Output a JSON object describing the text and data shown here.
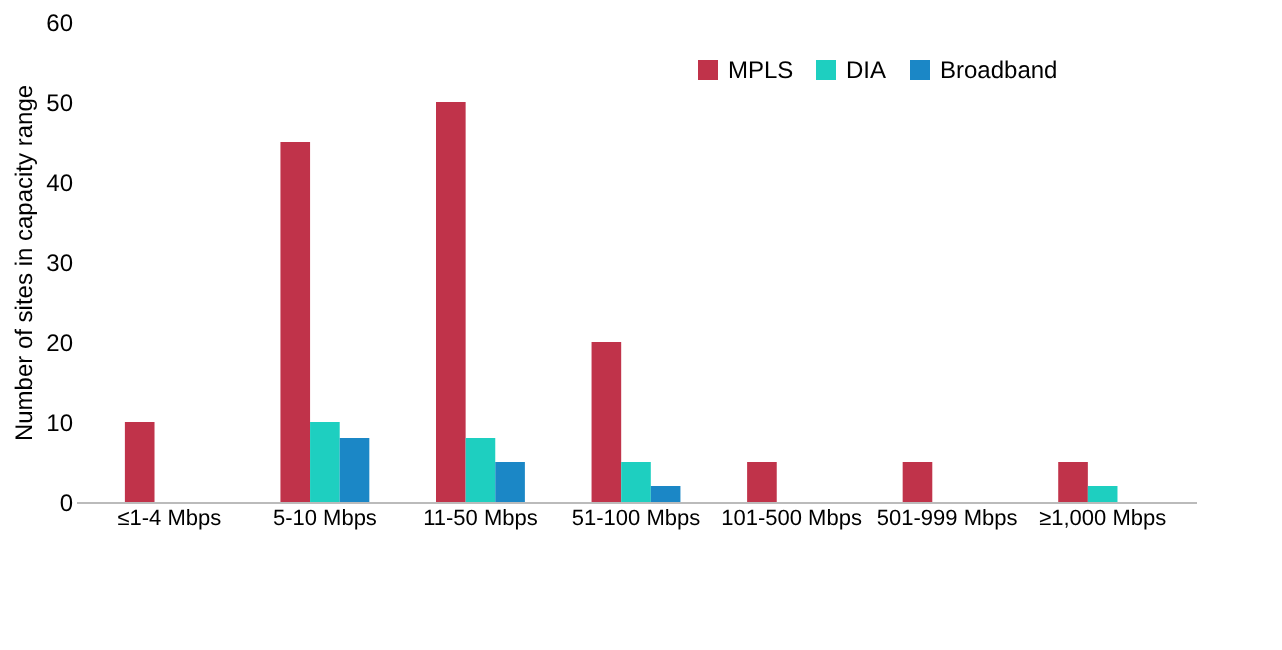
{
  "chart_data": {
    "type": "bar",
    "ylabel": "Number of sites in capacity range",
    "categories": [
      "≤1-4 Mbps",
      "5-10 Mbps",
      "11-50 Mbps",
      "51-100 Mbps",
      "101-500 Mbps",
      "501-999 Mbps",
      "≥1,000 Mbps"
    ],
    "series": [
      {
        "name": "MPLS",
        "color": "#c0334a",
        "values": [
          10,
          45,
          50,
          20,
          5,
          5,
          5
        ]
      },
      {
        "name": "DIA",
        "color": "#1ecfc0",
        "values": [
          0,
          10,
          8,
          5,
          0,
          0,
          2
        ]
      },
      {
        "name": "Broadband",
        "color": "#1b87c6",
        "values": [
          0,
          8,
          5,
          2,
          0,
          0,
          0
        ]
      }
    ],
    "ylim": [
      0,
      60
    ],
    "yticks": [
      0,
      10,
      20,
      30,
      40,
      50,
      60
    ],
    "grid": false,
    "legend": "top right"
  }
}
